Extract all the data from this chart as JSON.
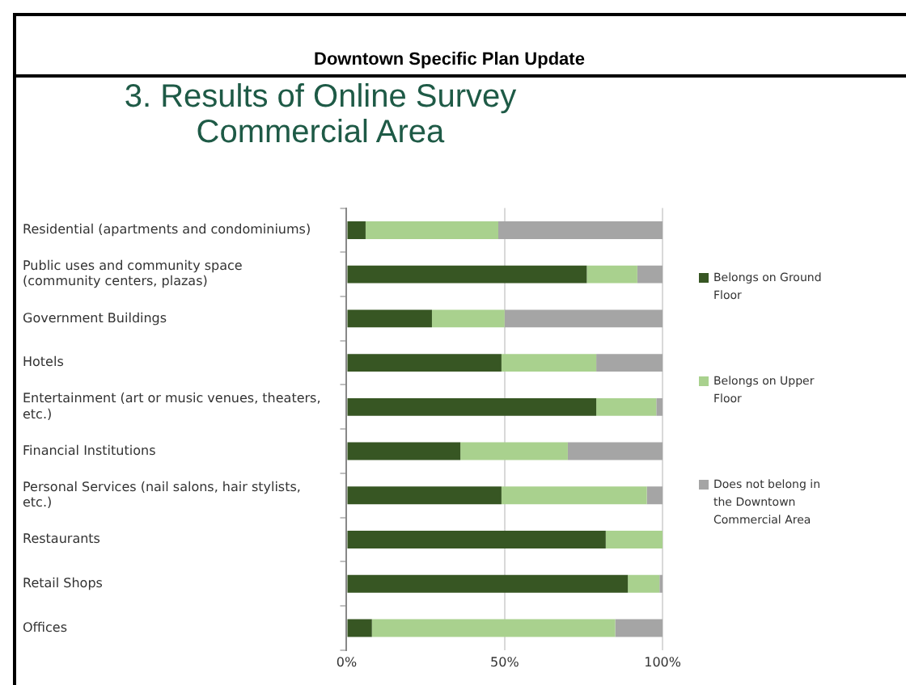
{
  "chart_data": {
    "type": "bar",
    "orientation": "horizontal",
    "stacked": true,
    "title": "Downtown Specific Plan Update",
    "subtitle": "3. Results of Online Survey Commercial Area",
    "categories": [
      "Residential (apartments and condominiums)",
      "Public uses and community space (community centers, plazas)",
      "Government Buildings",
      "Hotels",
      "Entertainment (art or music venues, theaters, etc.)",
      "Financial Institutions",
      "Personal Services (nail salons, hair stylists, etc.)",
      "Restaurants",
      "Retail Shops",
      "Offices"
    ],
    "series": [
      {
        "name": "Belongs on Ground Floor",
        "color": "#375623",
        "values": [
          6,
          76,
          27,
          49,
          79,
          36,
          49,
          82,
          89,
          8
        ]
      },
      {
        "name": "Belongs on Upper Floor",
        "color": "#a9d18e",
        "values": [
          42,
          16,
          23,
          30,
          19,
          34,
          46,
          18,
          10,
          77
        ]
      },
      {
        "name": "Does not belong in the Downtown Commercial Area",
        "color": "#a5a5a5",
        "values": [
          52,
          8,
          50,
          21,
          2,
          30,
          5,
          0,
          1,
          15
        ]
      }
    ],
    "xlim": [
      0,
      100
    ],
    "xticks": [
      {
        "value": 0,
        "label": "0%"
      },
      {
        "value": 50,
        "label": "50%"
      },
      {
        "value": 100,
        "label": "100%"
      }
    ],
    "grid": "x",
    "legend": "right"
  }
}
